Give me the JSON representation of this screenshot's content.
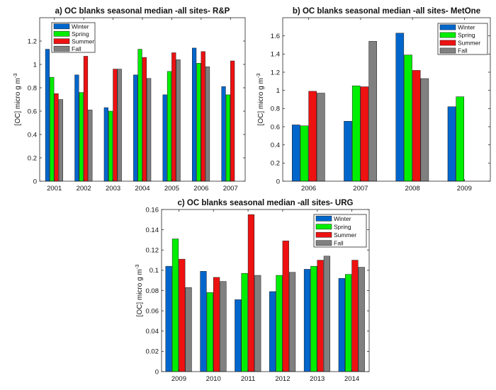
{
  "chart_data": [
    {
      "type": "bar",
      "title": "a) OC blanks seasonal median -all sites- R&P",
      "xlabel": "",
      "ylabel": "[OC] micro g m",
      "ylabel_sup": "-3",
      "categories": [
        "2001",
        "2002",
        "2003",
        "2004",
        "2005",
        "2006",
        "2007"
      ],
      "ylim": [
        0,
        1.4
      ],
      "yticks": [
        0,
        0.2,
        0.4,
        0.6,
        0.8,
        1,
        1.2
      ],
      "legend_position": "top-left",
      "series": [
        {
          "name": "Winter",
          "color": "#0066cc",
          "values": [
            1.13,
            0.91,
            0.63,
            0.91,
            0.74,
            1.14,
            0.81
          ]
        },
        {
          "name": "Spring",
          "color": "#00ee00",
          "values": [
            0.89,
            0.76,
            0.6,
            1.13,
            0.94,
            1.01,
            0.74
          ]
        },
        {
          "name": "Summer",
          "color": "#ee1111",
          "values": [
            0.75,
            1.07,
            0.96,
            1.06,
            1.1,
            1.11,
            1.03
          ]
        },
        {
          "name": "Fall",
          "color": "#808080",
          "values": [
            0.7,
            0.61,
            0.96,
            0.88,
            1.04,
            0.98,
            null
          ]
        }
      ]
    },
    {
      "type": "bar",
      "title": "b) OC blanks seasonal median -all sites- MetOne",
      "xlabel": "",
      "ylabel": "[OC] micro g m",
      "ylabel_sup": "-3",
      "categories": [
        "2006",
        "2007",
        "2008",
        "2009"
      ],
      "ylim": [
        0,
        1.8
      ],
      "yticks": [
        0,
        0.2,
        0.4,
        0.6,
        0.8,
        1,
        1.2,
        1.4,
        1.6
      ],
      "legend_position": "top-right",
      "series": [
        {
          "name": "Winter",
          "color": "#0066cc",
          "values": [
            0.62,
            0.66,
            1.63,
            0.82
          ]
        },
        {
          "name": "Spring",
          "color": "#00ee00",
          "values": [
            0.61,
            1.05,
            1.39,
            0.93
          ]
        },
        {
          "name": "Summer",
          "color": "#ee1111",
          "values": [
            0.99,
            1.04,
            1.22,
            null
          ]
        },
        {
          "name": "Fall",
          "color": "#808080",
          "values": [
            0.97,
            1.54,
            1.13,
            null
          ]
        }
      ]
    },
    {
      "type": "bar",
      "title": "c) OC blanks seasonal median -all sites- URG",
      "xlabel": "",
      "ylabel": "[OC] micro g m",
      "ylabel_sup": "-3",
      "categories": [
        "2009",
        "2010",
        "2011",
        "2012",
        "2013",
        "2014"
      ],
      "ylim": [
        0,
        0.16
      ],
      "yticks": [
        0,
        0.02,
        0.04,
        0.06,
        0.08,
        0.1,
        0.12,
        0.14,
        0.16
      ],
      "legend_position": "top-right",
      "series": [
        {
          "name": "Winter",
          "color": "#0066cc",
          "values": [
            0.104,
            0.099,
            0.071,
            0.079,
            0.101,
            0.092
          ]
        },
        {
          "name": "Spring",
          "color": "#00ee00",
          "values": [
            0.131,
            0.078,
            0.097,
            0.095,
            0.104,
            0.096
          ]
        },
        {
          "name": "Summer",
          "color": "#ee1111",
          "values": [
            0.111,
            0.093,
            0.155,
            0.129,
            0.11,
            0.11
          ]
        },
        {
          "name": "Fall",
          "color": "#808080",
          "values": [
            0.083,
            0.089,
            0.095,
            0.098,
            0.114,
            0.103
          ]
        }
      ]
    }
  ]
}
